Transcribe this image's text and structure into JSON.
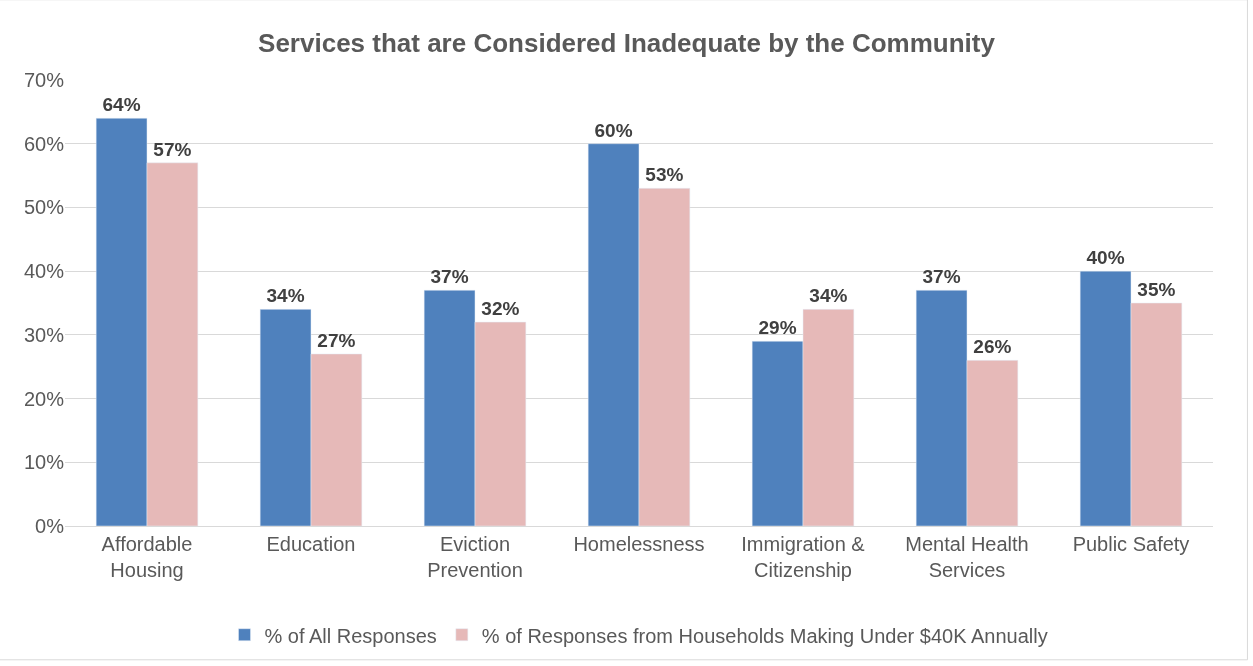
{
  "chart_data": {
    "type": "bar",
    "title": "Services that are Considered Inadequate by the Community",
    "categories": [
      "Affordable Housing",
      "Education",
      "Eviction Prevention",
      "Homelessness",
      "Immigration & Citizenship",
      "Mental Health Services",
      "Public Safety"
    ],
    "series": [
      {
        "name": "% of All Responses",
        "color": "#4f81bd",
        "values": [
          64,
          34,
          37,
          60,
          29,
          37,
          40
        ],
        "value_labels": [
          "64%",
          "34%",
          "37%",
          "60%",
          "29%",
          "37%",
          "40%"
        ]
      },
      {
        "name": "% of Responses from Households Making Under $40K Annually",
        "color": "#e6b9b8",
        "values": [
          57,
          27,
          32,
          53,
          34,
          26,
          35
        ],
        "value_labels": [
          "57%",
          "27%",
          "32%",
          "53%",
          "34%",
          "26%",
          "35%"
        ]
      }
    ],
    "ylim": [
      0,
      70
    ],
    "yticks": [
      {
        "value": 0,
        "label": "0%"
      },
      {
        "value": 10,
        "label": "10%"
      },
      {
        "value": 20,
        "label": "20%"
      },
      {
        "value": 30,
        "label": "30%"
      },
      {
        "value": 40,
        "label": "40%"
      },
      {
        "value": 50,
        "label": "50%"
      },
      {
        "value": 60,
        "label": "60%"
      },
      {
        "value": 70,
        "label": "70%"
      }
    ],
    "grid": "y",
    "legend": "bottom"
  }
}
